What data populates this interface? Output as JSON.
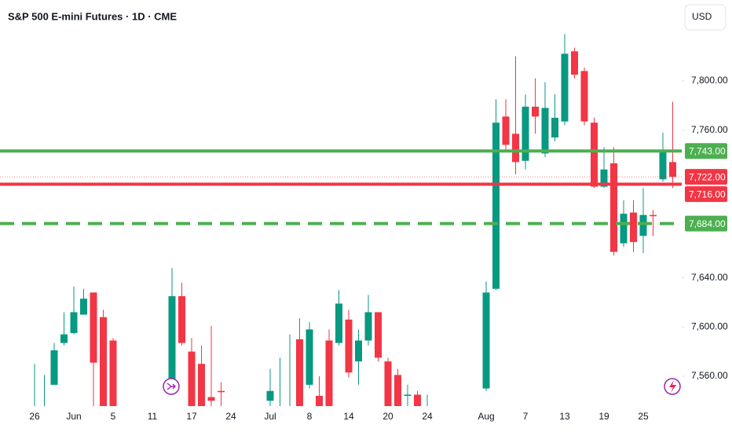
{
  "chart_data": {
    "type": "candlestick",
    "title": "S&P 500 E-mini Futures · 1D · CME",
    "currency": "USD",
    "up_color": "#089981",
    "down_color": "#f23645",
    "categories": [
      "26",
      null,
      null,
      null,
      "Jun",
      null,
      null,
      null,
      "5",
      null,
      null,
      null,
      "11",
      null,
      null,
      null,
      "17",
      null,
      null,
      null,
      "24",
      null,
      null,
      null,
      "Jul",
      null,
      null,
      null,
      "8",
      null,
      null,
      null,
      "14",
      null,
      null,
      null,
      "20",
      null,
      null,
      null,
      "24",
      null,
      null,
      null,
      null,
      null,
      "Aug",
      null,
      null,
      null,
      "7",
      null,
      null,
      null,
      "13",
      null,
      null,
      null,
      "19",
      null,
      null,
      null,
      "25",
      null,
      null,
      null
    ],
    "open": [
      null,
      null,
      7553,
      7587,
      7595,
      7610,
      7628,
      7608,
      7589,
      null,
      null,
      null,
      null,
      null,
      7553,
      7625,
      7580,
      7570,
      7543,
      7548,
      null,
      null,
      null,
      null,
      7540,
      null,
      null,
      7590,
      7553,
      7544,
      7589,
      7587,
      7606,
      7572,
      7589,
      7612,
      7572,
      7561,
      7544,
      7545,
      null,
      null,
      null,
      null,
      null,
      null,
      7550,
      7631,
      7771,
      7757,
      7735,
      7779,
      7741,
      7754,
      7767,
      7824,
      7808,
      7766,
      7714,
      7733,
      7668,
      7693,
      7674,
      7691,
      7720,
      7734
    ],
    "high": [
      7570,
      7561,
      7587,
      7612,
      7633,
      7631,
      7628,
      7614,
      7591,
      null,
      null,
      null,
      null,
      null,
      7648,
      7636,
      7591,
      7585,
      7601,
      7555,
      null,
      null,
      null,
      null,
      7566,
      7575,
      7594,
      7607,
      7604,
      7560,
      7598,
      7630,
      7614,
      7598,
      7626,
      7612,
      7575,
      7566,
      7553,
      7548,
      7545,
      null,
      null,
      null,
      null,
      null,
      7637,
      7785,
      7785,
      7820,
      7789,
      7802,
      7799,
      7789,
      7838,
      7827,
      7811,
      7770,
      7746,
      7746,
      7703,
      7703,
      7713,
      7695,
      7758,
      7783
    ],
    "low": [
      null,
      null,
      7553,
      7585,
      7594,
      7610,
      null,
      null,
      null,
      null,
      null,
      null,
      null,
      null,
      7553,
      7585,
      null,
      null,
      null,
      null,
      null,
      null,
      null,
      null,
      null,
      null,
      null,
      null,
      7550,
      null,
      null,
      7585,
      7559,
      7553,
      7585,
      7572,
      null,
      null,
      null,
      null,
      null,
      null,
      null,
      null,
      null,
      null,
      7548,
      7630,
      7744,
      7724,
      7728,
      7757,
      7738,
      7751,
      7764,
      7802,
      7764,
      7713,
      7713,
      7658,
      7665,
      7661,
      7660,
      7674,
      7718,
      7713
    ],
    "close": [
      null,
      null,
      7581,
      7594,
      7612,
      7623,
      7571,
      null,
      null,
      null,
      null,
      null,
      null,
      null,
      7625,
      7587,
      null,
      null,
      7540,
      7547,
      null,
      null,
      null,
      null,
      7548,
      null,
      null,
      null,
      7598,
      null,
      null,
      7619,
      7563,
      7589,
      7612,
      7575,
      null,
      null,
      7545,
      null,
      null,
      null,
      null,
      null,
      null,
      null,
      7628,
      7766,
      7748,
      7734,
      7779,
      7771,
      7778,
      7770,
      7822,
      7805,
      7767,
      7714,
      7728,
      7661,
      7692,
      7669,
      7691,
      7690,
      7743,
      7722
    ],
    "ylim": [
      7535.7,
      7865.7
    ],
    "yticks": [
      {
        "value": 7560,
        "label": "7,560.00"
      },
      {
        "value": 7600,
        "label": "7,600.00"
      },
      {
        "value": 7640,
        "label": "7,640.00"
      },
      {
        "value": 7760,
        "label": "7,760.00"
      },
      {
        "value": 7800,
        "label": "7,800.00"
      }
    ],
    "levels": [
      {
        "value": 7743,
        "label": "7,743.00",
        "color": "#4caf50",
        "style": "solid"
      },
      {
        "value": 7716,
        "label": "7,716.00",
        "color": "#f23645",
        "style": "solid"
      },
      {
        "value": 7684,
        "label": "7,684.00",
        "color": "#4caf50",
        "style": "dashed"
      }
    ],
    "last_price": {
      "value": 7722,
      "label": "7,722.00",
      "color": "#f23645"
    }
  }
}
